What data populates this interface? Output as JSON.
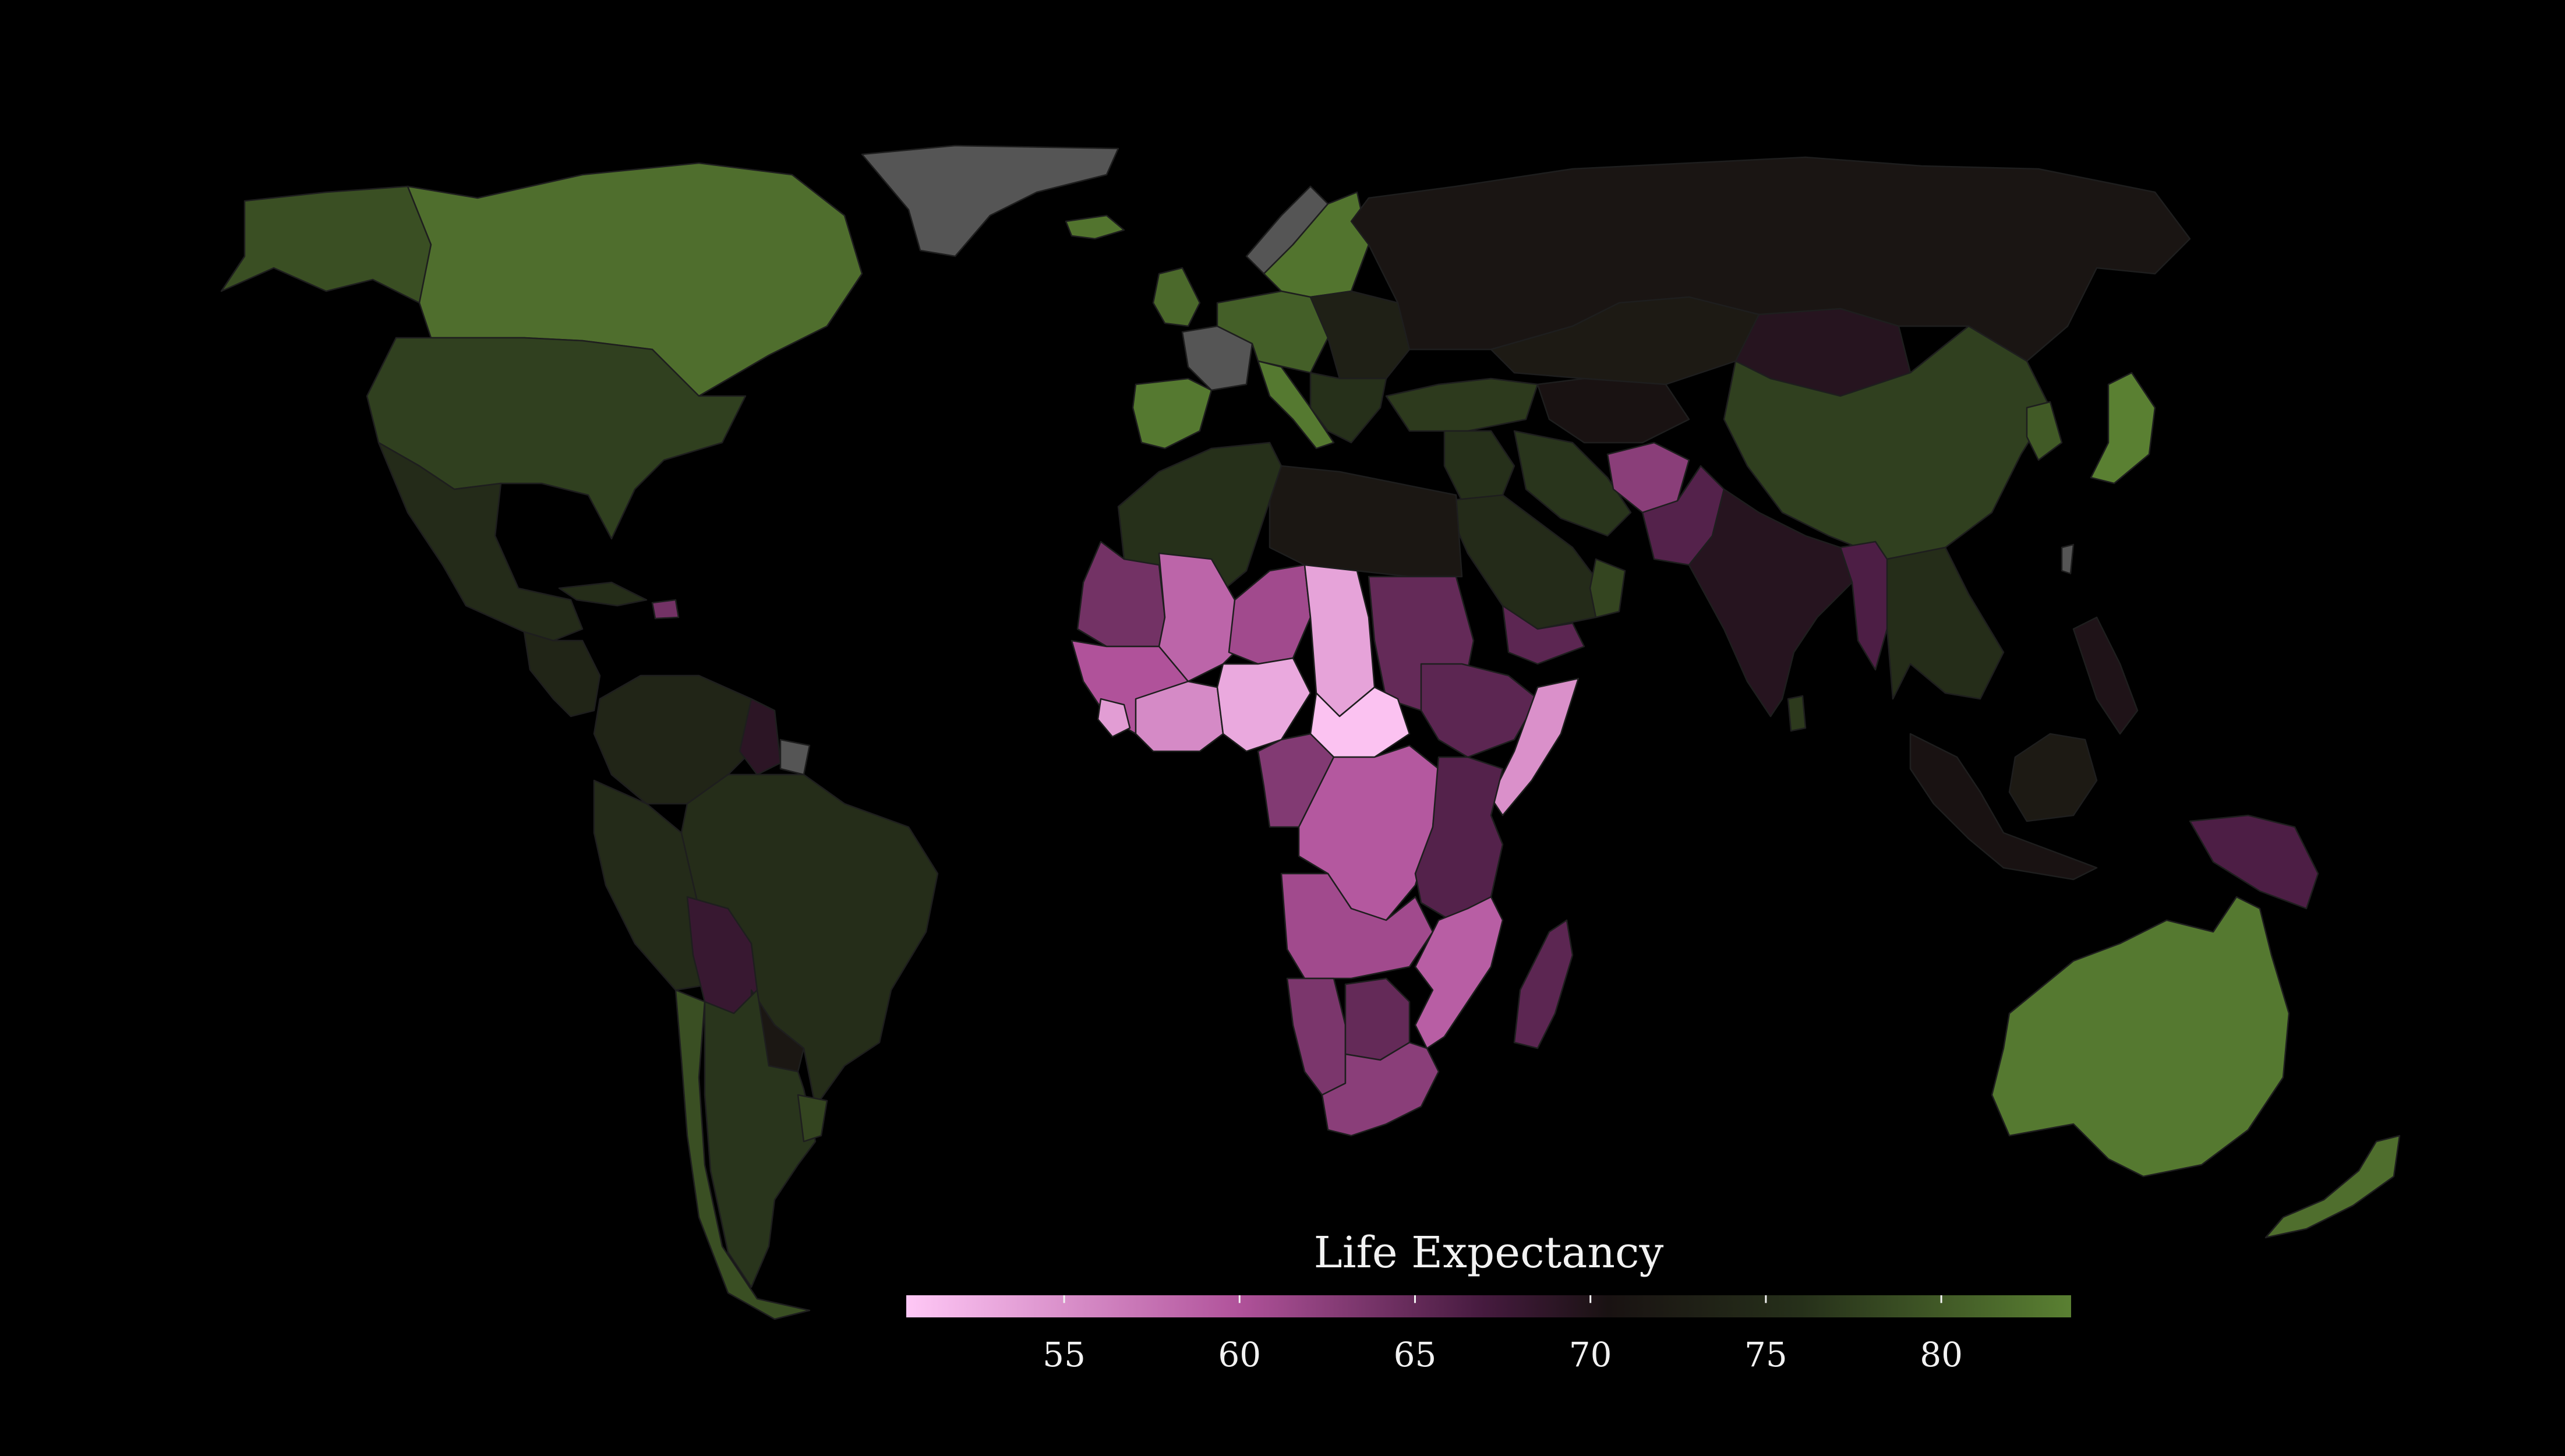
{
  "legend": {
    "title": "Life Expectancy",
    "min": 50.5,
    "max": 83.7,
    "ticks": [
      55,
      60,
      65,
      70,
      75,
      80
    ],
    "tick_labels": [
      "55",
      "60",
      "65",
      "70",
      "75",
      "80"
    ],
    "color_stops": [
      {
        "value": 50.5,
        "color": "#ffc8f6"
      },
      {
        "value": 60,
        "color": "#b0529a"
      },
      {
        "value": 67,
        "color": "#451a3e"
      },
      {
        "value": 70.5,
        "color": "#191212"
      },
      {
        "value": 76,
        "color": "#26301a"
      },
      {
        "value": 83.7,
        "color": "#5a8032"
      }
    ],
    "no_data_color": "#555555"
  },
  "regions": [
    {
      "name": "canada",
      "value": 82.0
    },
    {
      "name": "alaska",
      "value": 79.0
    },
    {
      "name": "greenland",
      "value": null
    },
    {
      "name": "usa",
      "value": 77.5
    },
    {
      "name": "mexico",
      "value": 75.0
    },
    {
      "name": "central-america",
      "value": 74.0
    },
    {
      "name": "cuba",
      "value": 75.5
    },
    {
      "name": "haiti",
      "value": 64.0
    },
    {
      "name": "colombia-venezuela",
      "value": 74.0
    },
    {
      "name": "guyana-suriname",
      "value": 69.0
    },
    {
      "name": "french-guiana",
      "value": null
    },
    {
      "name": "peru-ecuador",
      "value": 75.0
    },
    {
      "name": "brazil",
      "value": 75.5
    },
    {
      "name": "bolivia",
      "value": 68.0
    },
    {
      "name": "paraguay",
      "value": 71.5
    },
    {
      "name": "chile",
      "value": 79.0
    },
    {
      "name": "argentina",
      "value": 76.5
    },
    {
      "name": "uruguay",
      "value": 78.0
    },
    {
      "name": "iceland",
      "value": 82.5
    },
    {
      "name": "uk-ireland",
      "value": 81.5
    },
    {
      "name": "scandinavia",
      "value": 82.5
    },
    {
      "name": "norway-north",
      "value": null
    },
    {
      "name": "france",
      "value": null
    },
    {
      "name": "iberia",
      "value": 83.0
    },
    {
      "name": "central-europe",
      "value": 80.5
    },
    {
      "name": "italy",
      "value": 83.0
    },
    {
      "name": "eastern-europe",
      "value": 73.0
    },
    {
      "name": "balkans",
      "value": 76.0
    },
    {
      "name": "russia",
      "value": 71.0
    },
    {
      "name": "kazakhstan",
      "value": 72.0
    },
    {
      "name": "mongolia",
      "value": 69.5
    },
    {
      "name": "china",
      "value": 77.5
    },
    {
      "name": "japan",
      "value": 84.0
    },
    {
      "name": "korea",
      "value": 80.0
    },
    {
      "name": "turkey-caucasus",
      "value": 77.0
    },
    {
      "name": "central-asia",
      "value": 70.5
    },
    {
      "name": "middle-east",
      "value": 76.0
    },
    {
      "name": "arabia",
      "value": 75.0
    },
    {
      "name": "yemen",
      "value": 65.5
    },
    {
      "name": "oman",
      "value": 78.0
    },
    {
      "name": "iran",
      "value": 76.5
    },
    {
      "name": "afghanistan",
      "value": 62.5
    },
    {
      "name": "pakistan",
      "value": 66.0
    },
    {
      "name": "india",
      "value": 69.5
    },
    {
      "name": "myanmar",
      "value": 66.5
    },
    {
      "name": "thailand-vietnam",
      "value": 75.5
    },
    {
      "name": "sri-lanka",
      "value": 77.0
    },
    {
      "name": "sumatra-java",
      "value": 70.5
    },
    {
      "name": "borneo",
      "value": 72.0
    },
    {
      "name": "philippines",
      "value": 70.0
    },
    {
      "name": "new-guinea",
      "value": 66.5
    },
    {
      "name": "australia",
      "value": 83.0
    },
    {
      "name": "new-zealand",
      "value": 82.0
    },
    {
      "name": "taiwan",
      "value": null
    },
    {
      "name": "north-africa",
      "value": 76.0
    },
    {
      "name": "libya-egypt",
      "value": 71.5
    },
    {
      "name": "mauritania",
      "value": 64.0
    },
    {
      "name": "mali",
      "value": 58.5
    },
    {
      "name": "niger",
      "value": 61.0
    },
    {
      "name": "chad",
      "value": 53.5
    },
    {
      "name": "sudan",
      "value": 65.0
    },
    {
      "name": "senegal-guinea",
      "value": 60.0
    },
    {
      "name": "sierra-leone",
      "value": 54.0
    },
    {
      "name": "cote-divoire-ghana",
      "value": 55.5
    },
    {
      "name": "nigeria",
      "value": 53.0
    },
    {
      "name": "central-african-republic",
      "value": 51.0
    },
    {
      "name": "ethiopia",
      "value": 65.5
    },
    {
      "name": "somalia",
      "value": 55.0
    },
    {
      "name": "cameroon-gabon",
      "value": 63.0
    },
    {
      "name": "drc",
      "value": 59.5
    },
    {
      "name": "kenya-tanzania",
      "value": 66.0
    },
    {
      "name": "angola-zambia",
      "value": 61.0
    },
    {
      "name": "mozambique",
      "value": 59.0
    },
    {
      "name": "namibia",
      "value": 63.5
    },
    {
      "name": "botswana",
      "value": 65.0
    },
    {
      "name": "south-africa",
      "value": 62.5
    },
    {
      "name": "madagascar",
      "value": 65.5
    }
  ]
}
